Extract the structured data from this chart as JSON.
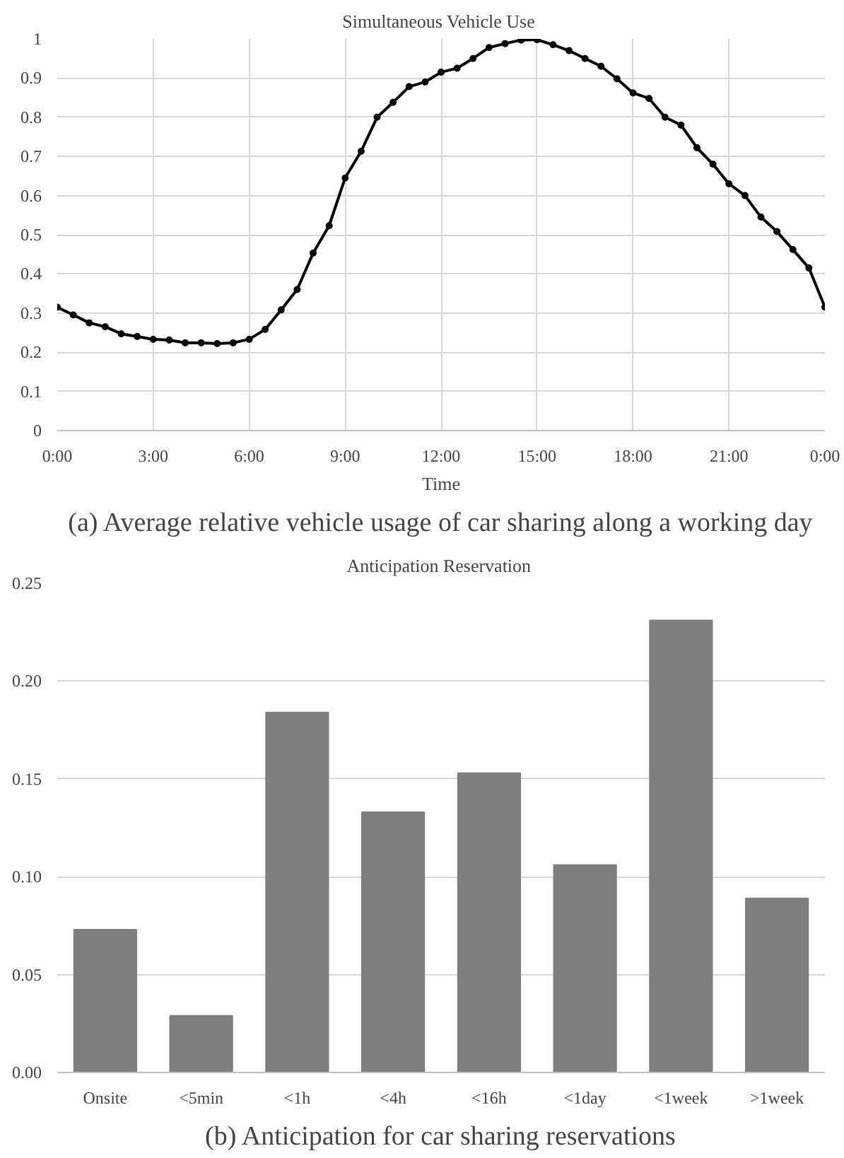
{
  "chart_data": [
    {
      "type": "line",
      "title": "Simultaneous  Vehicle Use",
      "xlabel": "Time",
      "annotations": [
        "(a) Average relative vehicle usage of car sharing along a working day"
      ],
      "x": [
        0,
        0.5,
        1,
        1.5,
        2,
        2.5,
        3,
        3.5,
        4,
        4.5,
        5,
        5.5,
        6,
        6.5,
        7,
        7.5,
        8,
        8.5,
        9,
        9.5,
        10,
        10.5,
        11,
        11.5,
        12,
        12.5,
        13,
        13.5,
        14,
        14.5,
        15,
        15.5,
        16,
        16.5,
        17,
        17.5,
        18,
        18.5,
        19,
        19.5,
        20,
        20.5,
        21,
        21.5,
        22,
        22.5,
        23,
        23.5,
        24
      ],
      "series": [
        {
          "color": "#000000",
          "values": [
            0.315,
            0.295,
            0.275,
            0.265,
            0.247,
            0.24,
            0.233,
            0.231,
            0.224,
            0.224,
            0.222,
            0.224,
            0.233,
            0.258,
            0.308,
            0.36,
            0.453,
            0.523,
            0.645,
            0.713,
            0.8,
            0.838,
            0.878,
            0.89,
            0.915,
            0.925,
            0.95,
            0.978,
            0.988,
            0.997,
            0.998,
            0.985,
            0.97,
            0.95,
            0.93,
            0.898,
            0.862,
            0.848,
            0.8,
            0.78,
            0.722,
            0.68,
            0.63,
            0.6,
            0.545,
            0.508,
            0.462,
            0.415,
            0.315
          ]
        }
      ],
      "xlim": [
        0,
        24
      ],
      "xticks": [
        {
          "value": 0,
          "label": "0:00"
        },
        {
          "value": 3,
          "label": "3:00"
        },
        {
          "value": 6,
          "label": "6:00"
        },
        {
          "value": 9,
          "label": "9:00"
        },
        {
          "value": 12,
          "label": "12:00"
        },
        {
          "value": 15,
          "label": "15:00"
        },
        {
          "value": 18,
          "label": "18:00"
        },
        {
          "value": 21,
          "label": "21:00"
        },
        {
          "value": 24,
          "label": "0:00"
        }
      ],
      "ylim": [
        0,
        1
      ],
      "yticks": [
        0,
        0.1,
        0.2,
        0.3,
        0.4,
        0.5,
        0.6,
        0.7,
        0.8,
        0.9,
        1
      ],
      "grid": true,
      "marker": "circle",
      "line_style": "solid"
    },
    {
      "type": "bar",
      "title": "Anticipation  Reservation",
      "annotations": [
        "(b) Anticipation for car sharing reservations"
      ],
      "categories": [
        "Onsite",
        "<5min",
        "<1h",
        "<4h",
        "<16h",
        "<1day",
        "<1week",
        ">1week"
      ],
      "values": [
        0.073,
        0.029,
        0.184,
        0.133,
        0.153,
        0.106,
        0.231,
        0.089
      ],
      "color": "#7f7f7f",
      "ylim": [
        0,
        0.25
      ],
      "yticks": [
        {
          "value": 0,
          "label": "0.00"
        },
        {
          "value": 0.05,
          "label": "0.05"
        },
        {
          "value": 0.1,
          "label": "0.10"
        },
        {
          "value": 0.15,
          "label": "0.15"
        },
        {
          "value": 0.2,
          "label": "0.20"
        },
        {
          "value": 0.25,
          "label": "0.25"
        }
      ],
      "grid": "y"
    }
  ]
}
